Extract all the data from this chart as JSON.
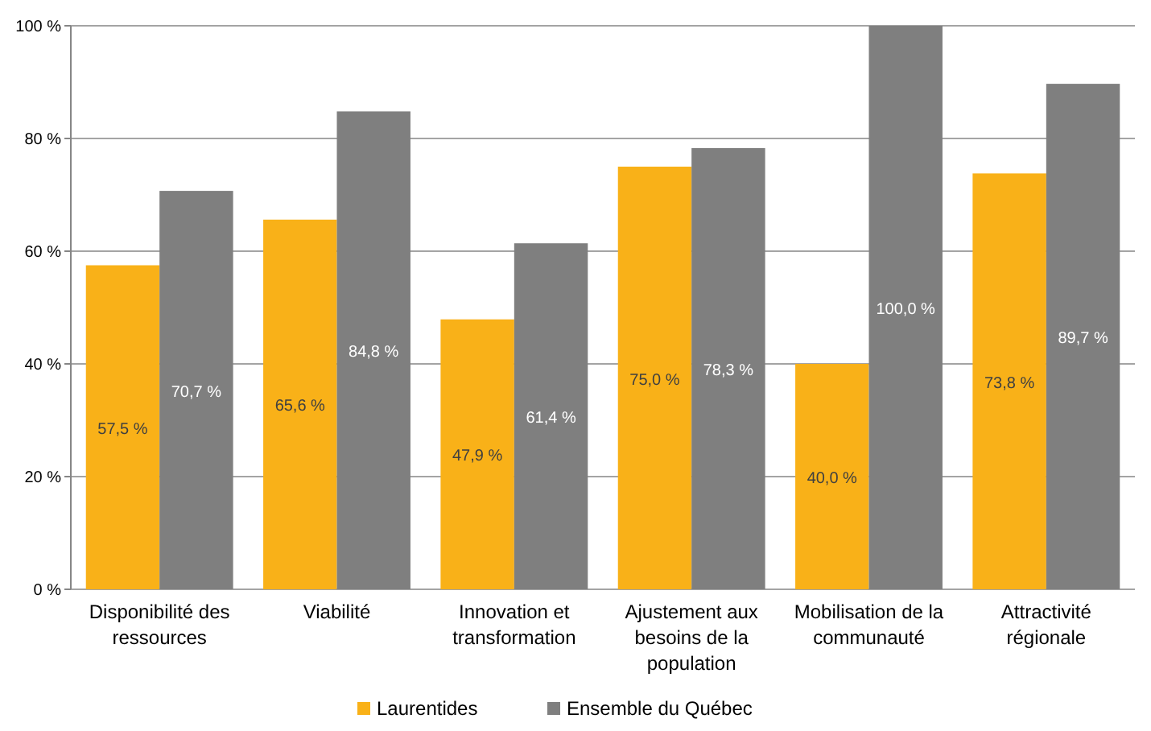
{
  "chart_data": {
    "type": "bar",
    "categories": [
      "Disponibilité des ressources",
      "Viabilité",
      "Innovation et transformation",
      "Ajustement aux besoins de la population",
      "Mobilisation de la communauté",
      "Attractivité régionale"
    ],
    "series": [
      {
        "name": "Laurentides",
        "color": "#f9b118",
        "values": [
          57.5,
          65.6,
          47.9,
          75.0,
          40.0,
          73.8
        ],
        "value_labels": [
          "57,5 %",
          "65,6 %",
          "47,9 %",
          "75,0 %",
          "40,0 %",
          "73,8 %"
        ]
      },
      {
        "name": "Ensemble du Québec",
        "color": "#7f7f7f",
        "values": [
          70.7,
          84.8,
          61.4,
          78.3,
          100.0,
          89.7
        ],
        "value_labels": [
          "70,7 %",
          "84,8 %",
          "61,4 %",
          "78,3 %",
          "100,0 %",
          "89,7 %"
        ]
      }
    ],
    "ylim": [
      0,
      100
    ],
    "yticks": [
      {
        "value": 0,
        "label": "0 %"
      },
      {
        "value": 20,
        "label": "20 %"
      },
      {
        "value": 40,
        "label": "40 %"
      },
      {
        "value": 60,
        "label": "60 %"
      },
      {
        "value": 80,
        "label": "80 %"
      },
      {
        "value": 100,
        "label": "100 %"
      }
    ],
    "grid": "y",
    "legend": "bottom"
  }
}
